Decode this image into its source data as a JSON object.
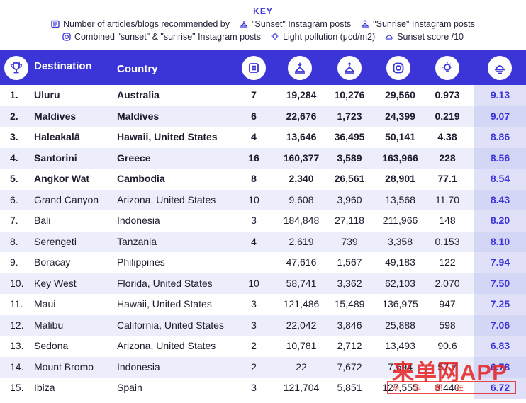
{
  "key": {
    "title": "KEY",
    "items": [
      {
        "icon": "articles-icon",
        "label": "Number of articles/blogs recommended by"
      },
      {
        "icon": "sunset-icon",
        "label": "\"Sunset\" Instagram posts"
      },
      {
        "icon": "sunrise-icon",
        "label": "\"Sunrise\" Instagram posts"
      },
      {
        "icon": "instagram-icon",
        "label": "Combined \"sunset\" & \"sunrise\" Instagram posts"
      },
      {
        "icon": "lightbulb-icon",
        "label": "Light pollution (μcd/m2)"
      },
      {
        "icon": "sunset-score-icon",
        "label": "Sunset score /10"
      }
    ]
  },
  "header": {
    "destination": "Destination",
    "country": "Country"
  },
  "colors": {
    "accent": "#3b34d6",
    "row_alt": "#eceefb",
    "watermark": "#e61e1e"
  },
  "rows": [
    {
      "rank": "1.",
      "destination": "Uluru",
      "country": "Australia",
      "articles": "7",
      "sunset": "19,284",
      "sunrise": "10,276",
      "combined": "29,560",
      "light": "0.973",
      "score": "9.13"
    },
    {
      "rank": "2.",
      "destination": "Maldives",
      "country": "Maldives",
      "articles": "6",
      "sunset": "22,676",
      "sunrise": "1,723",
      "combined": "24,399",
      "light": "0.219",
      "score": "9.07"
    },
    {
      "rank": "3.",
      "destination": "Haleakalā",
      "country": "Hawaii, United States",
      "articles": "4",
      "sunset": "13,646",
      "sunrise": "36,495",
      "combined": "50,141",
      "light": "4.38",
      "score": "8.86"
    },
    {
      "rank": "4.",
      "destination": "Santorini",
      "country": "Greece",
      "articles": "16",
      "sunset": "160,377",
      "sunrise": "3,589",
      "combined": "163,966",
      "light": "228",
      "score": "8.56"
    },
    {
      "rank": "5.",
      "destination": "Angkor Wat",
      "country": "Cambodia",
      "articles": "8",
      "sunset": "2,340",
      "sunrise": "26,561",
      "combined": "28,901",
      "light": "77.1",
      "score": "8.54"
    },
    {
      "rank": "6.",
      "destination": "Grand Canyon",
      "country": "Arizona, United States",
      "articles": "10",
      "sunset": "9,608",
      "sunrise": "3,960",
      "combined": "13,568",
      "light": "11.70",
      "score": "8.43"
    },
    {
      "rank": "7.",
      "destination": "Bali",
      "country": "Indonesia",
      "articles": "3",
      "sunset": "184,848",
      "sunrise": "27,118",
      "combined": "211,966",
      "light": "148",
      "score": "8.20"
    },
    {
      "rank": "8.",
      "destination": "Serengeti",
      "country": "Tanzania",
      "articles": "4",
      "sunset": "2,619",
      "sunrise": "739",
      "combined": "3,358",
      "light": "0.153",
      "score": "8.10"
    },
    {
      "rank": "9.",
      "destination": "Boracay",
      "country": "Philippines",
      "articles": "–",
      "sunset": "47,616",
      "sunrise": "1,567",
      "combined": "49,183",
      "light": "122",
      "score": "7.94"
    },
    {
      "rank": "10.",
      "destination": "Key West",
      "country": "Florida, United States",
      "articles": "10",
      "sunset": "58,741",
      "sunrise": "3,362",
      "combined": "62,103",
      "light": "2,070",
      "score": "7.50"
    },
    {
      "rank": "11.",
      "destination": "Maui",
      "country": "Hawaii, United States",
      "articles": "3",
      "sunset": "121,486",
      "sunrise": "15,489",
      "combined": "136,975",
      "light": "947",
      "score": "7.25"
    },
    {
      "rank": "12.",
      "destination": "Malibu",
      "country": "California, United States",
      "articles": "3",
      "sunset": "22,042",
      "sunrise": "3,846",
      "combined": "25,888",
      "light": "598",
      "score": "7.06"
    },
    {
      "rank": "13.",
      "destination": "Sedona",
      "country": "Arizona, United States",
      "articles": "2",
      "sunset": "10,781",
      "sunrise": "2,712",
      "combined": "13,493",
      "light": "90.6",
      "score": "6.83"
    },
    {
      "rank": "14.",
      "destination": "Mount Bromo",
      "country": "Indonesia",
      "articles": "2",
      "sunset": "22",
      "sunrise": "7,672",
      "combined": "7,694",
      "light": "57.7",
      "score": "6.78"
    },
    {
      "rank": "15.",
      "destination": "Ibiza",
      "country": "Spain",
      "articles": "3",
      "sunset": "121,704",
      "sunrise": "5,851",
      "combined": "127,555",
      "light": "3,440",
      "score": "6.72"
    }
  ],
  "watermark": {
    "big": "来单网APP",
    "small": "东 华 都 在"
  }
}
